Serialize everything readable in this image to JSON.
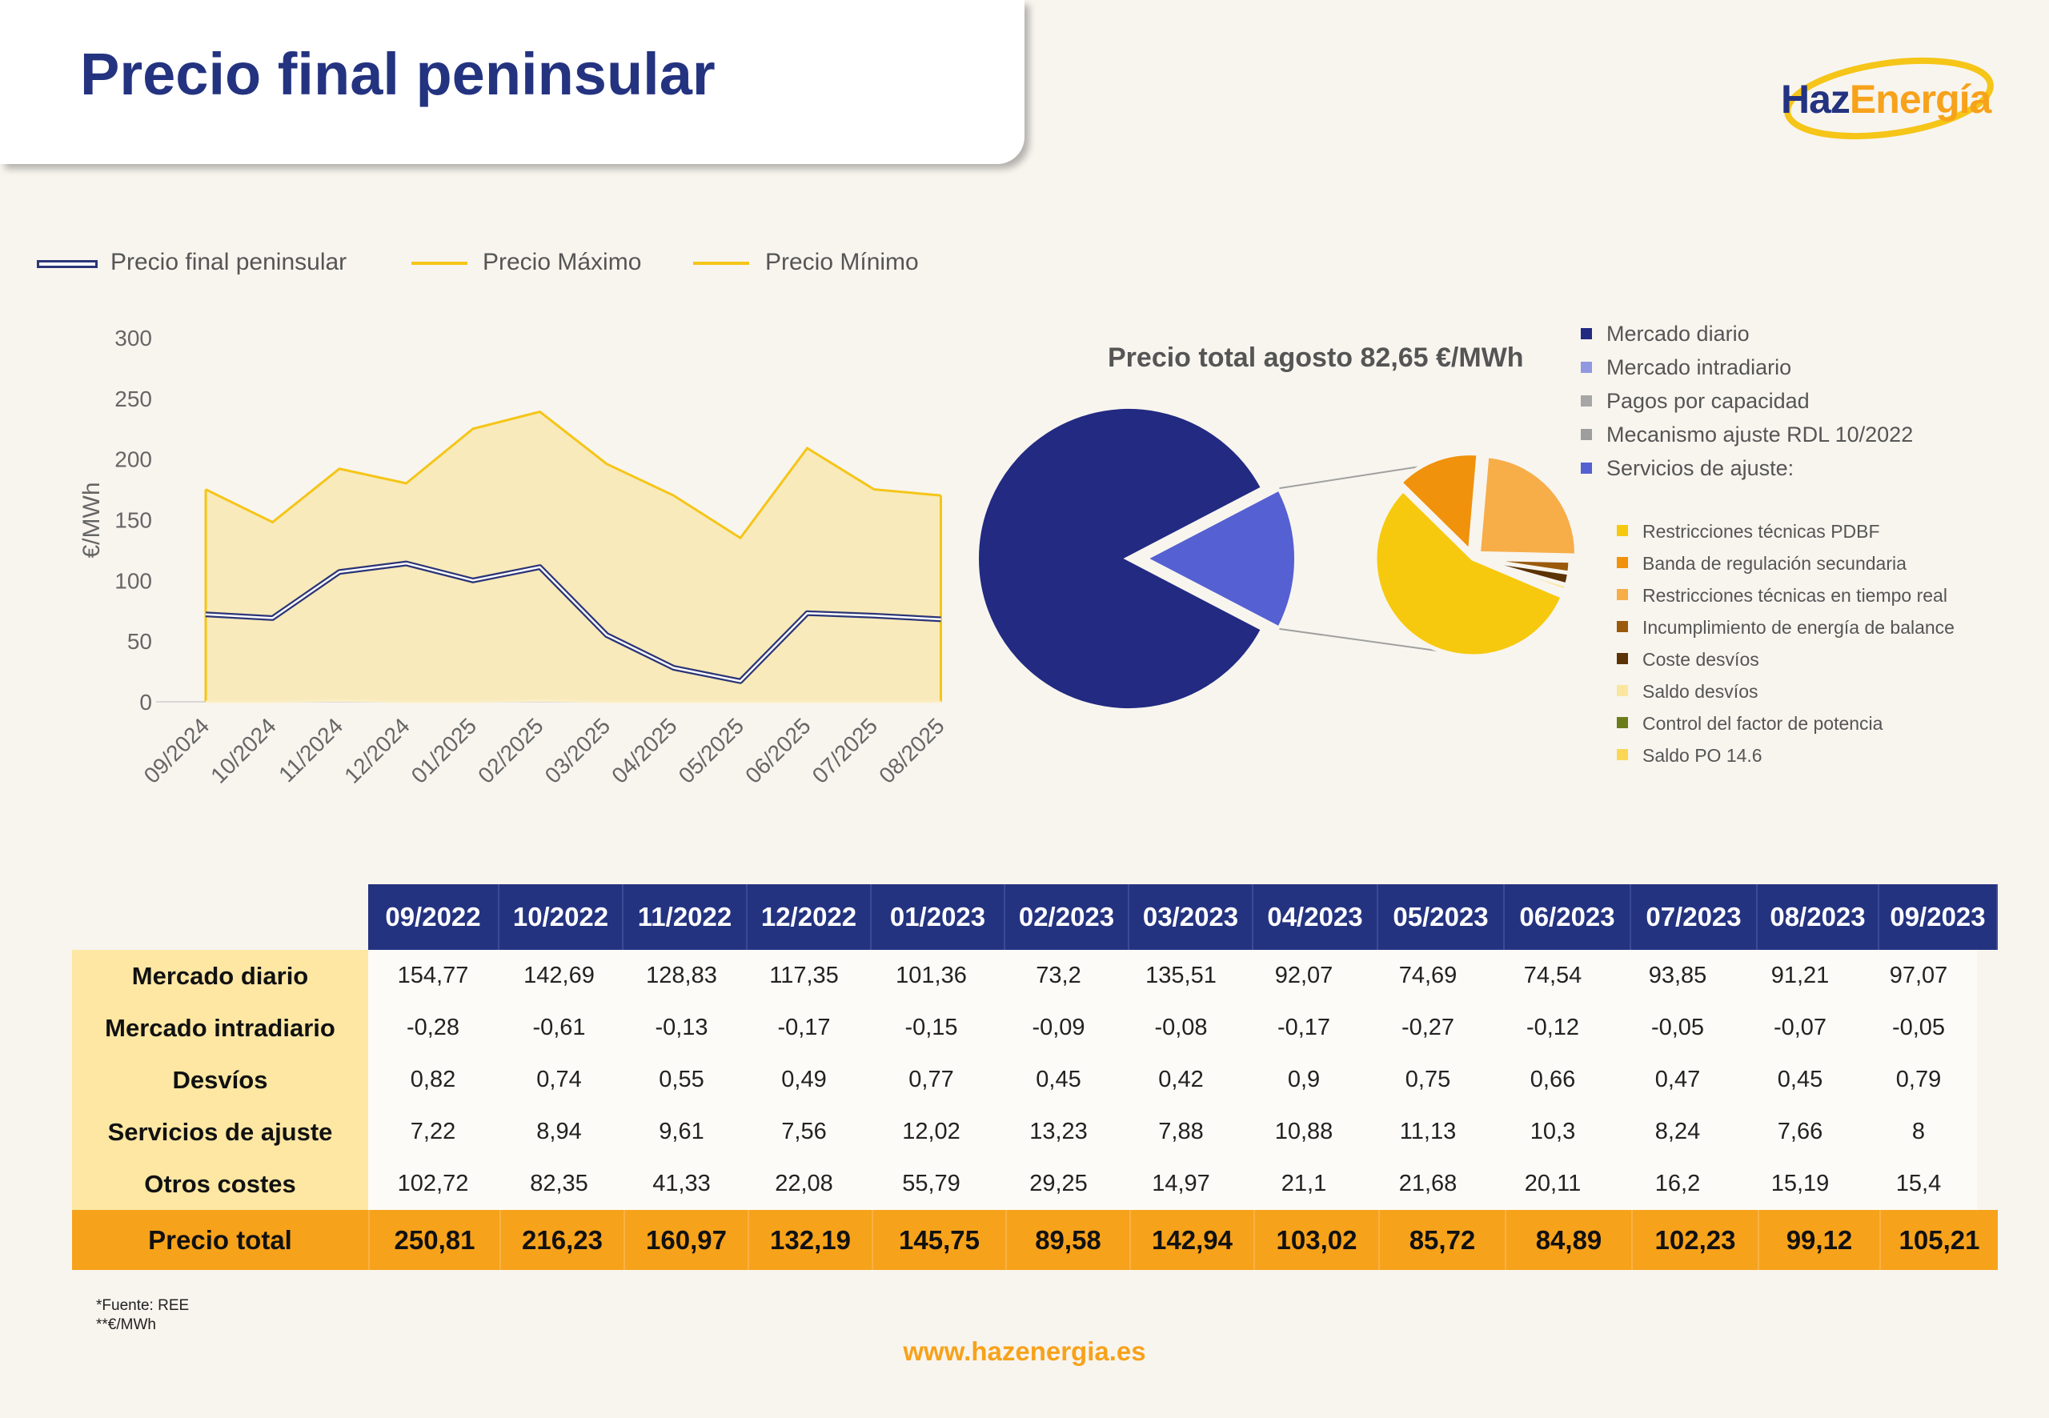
{
  "page": {
    "title": "Precio final peninsular",
    "logo": {
      "haz": "Haz",
      "energia": "Energía"
    },
    "footnotes": [
      "*Fuente: REE",
      "**€/MWh"
    ],
    "website": "www.hazenergia.es"
  },
  "colors": {
    "navy": "#243380",
    "orange": "#f7a21b",
    "yellow": "#f5c518",
    "area_fill": "#f8eaba"
  },
  "line_legend": {
    "final": "Precio final peninsular",
    "max": "Precio Máximo",
    "min": "Precio Mínimo"
  },
  "pie": {
    "title": "Precio total agosto 82,65 €/MWh",
    "main_legend": [
      {
        "label": "Mercado diario",
        "color": "#222a82"
      },
      {
        "label": "Mercado intradiario",
        "color": "#8f98e0"
      },
      {
        "label": "Pagos por capacidad",
        "color": "#a6a6a6"
      },
      {
        "label": "Mecanismo ajuste RDL 10/2022",
        "color": "#9e9e9e"
      },
      {
        "label": "Servicios de ajuste:",
        "color": "#5560d2"
      }
    ],
    "sub_legend": [
      {
        "label": "Restricciones técnicas PDBF",
        "color": "#f7c90e"
      },
      {
        "label": "Banda de regulación secundaria",
        "color": "#f0920c"
      },
      {
        "label": "Restricciones técnicas en tiempo real",
        "color": "#f7ad48"
      },
      {
        "label": "Incumplimiento de energía de balance",
        "color": "#9a5a0a"
      },
      {
        "label": "Coste desvíos",
        "color": "#5b3306"
      },
      {
        "label": "Saldo desvíos",
        "color": "#fbe6a0"
      },
      {
        "label": "Control del factor de potencia",
        "color": "#6b7d1a"
      },
      {
        "label": "Saldo PO 14.6",
        "color": "#fbd755"
      }
    ]
  },
  "table": {
    "columns": [
      "09/2022",
      "10/2022",
      "11/2022",
      "12/2022",
      "01/2023",
      "02/2023",
      "03/2023",
      "04/2023",
      "05/2023",
      "06/2023",
      "07/2023",
      "08/2023",
      "09/2023"
    ],
    "rows": [
      {
        "label": "Mercado diario",
        "values": [
          "154,77",
          "142,69",
          "128,83",
          "117,35",
          "101,36",
          "73,2",
          "135,51",
          "92,07",
          "74,69",
          "74,54",
          "93,85",
          "91,21",
          "97,07"
        ]
      },
      {
        "label": "Mercado intradiario",
        "values": [
          "-0,28",
          "-0,61",
          "-0,13",
          "-0,17",
          "-0,15",
          "-0,09",
          "-0,08",
          "-0,17",
          "-0,27",
          "-0,12",
          "-0,05",
          "-0,07",
          "-0,05"
        ]
      },
      {
        "label": "Desvíos",
        "values": [
          "0,82",
          "0,74",
          "0,55",
          "0,49",
          "0,77",
          "0,45",
          "0,42",
          "0,9",
          "0,75",
          "0,66",
          "0,47",
          "0,45",
          "0,79"
        ]
      },
      {
        "label": "Servicios de ajuste",
        "values": [
          "7,22",
          "8,94",
          "9,61",
          "7,56",
          "12,02",
          "13,23",
          "7,88",
          "10,88",
          "11,13",
          "10,3",
          "8,24",
          "7,66",
          "8"
        ]
      },
      {
        "label": "Otros costes",
        "values": [
          "102,72",
          "82,35",
          "41,33",
          "22,08",
          "55,79",
          "29,25",
          "14,97",
          "21,1",
          "21,68",
          "20,11",
          "16,2",
          "15,19",
          "15,4"
        ]
      }
    ],
    "total": {
      "label": "Precio total",
      "values": [
        "250,81",
        "216,23",
        "160,97",
        "132,19",
        "145,75",
        "89,58",
        "142,94",
        "103,02",
        "85,72",
        "84,89",
        "102,23",
        "99,12",
        "105,21"
      ]
    }
  },
  "chart_data": [
    {
      "type": "line",
      "ylabel": "€/MWh",
      "ylim": [
        0,
        300
      ],
      "yticks": [
        0,
        50,
        100,
        150,
        200,
        250,
        300
      ],
      "categories": [
        "09/2024",
        "10/2024",
        "11/2024",
        "12/2024",
        "01/2025",
        "02/2025",
        "03/2025",
        "04/2025",
        "05/2025",
        "06/2025",
        "07/2025",
        "08/2025"
      ],
      "series": [
        {
          "name": "Precio final peninsular",
          "values": [
            72,
            69,
            107,
            114,
            100,
            111,
            55,
            28,
            17,
            73,
            71,
            68
          ]
        },
        {
          "name": "Precio Máximo",
          "values": [
            175,
            148,
            192,
            180,
            225,
            239,
            196,
            170,
            135,
            209,
            175,
            170
          ]
        },
        {
          "name": "Precio Mínimo",
          "values": [
            0,
            0,
            1,
            0,
            0,
            1,
            0,
            0,
            0,
            0,
            0,
            0
          ]
        }
      ],
      "legend": "top"
    },
    {
      "type": "pie",
      "title": "Precio total agosto 82,65 €/MWh",
      "slices": [
        {
          "name": "Mercado diario",
          "value": 70.0
        },
        {
          "name": "Servicios de ajuste:",
          "value": 12.65
        }
      ],
      "breakdown_of": "Servicios de ajuste:",
      "sub_slices": [
        {
          "name": "Restricciones técnicas PDBF",
          "value": 56
        },
        {
          "name": "Banda de regulación secundaria",
          "value": 14
        },
        {
          "name": "Restricciones técnicas en tiempo real",
          "value": 24
        },
        {
          "name": "Incumplimiento de energía de balance",
          "value": 2
        },
        {
          "name": "Coste desvíos",
          "value": 2
        },
        {
          "name": "Saldo desvíos",
          "value": 1
        },
        {
          "name": "Control del factor de potencia",
          "value": 0.5
        },
        {
          "name": "Saldo PO 14.6",
          "value": 0.5
        }
      ],
      "legend": "right"
    }
  ]
}
